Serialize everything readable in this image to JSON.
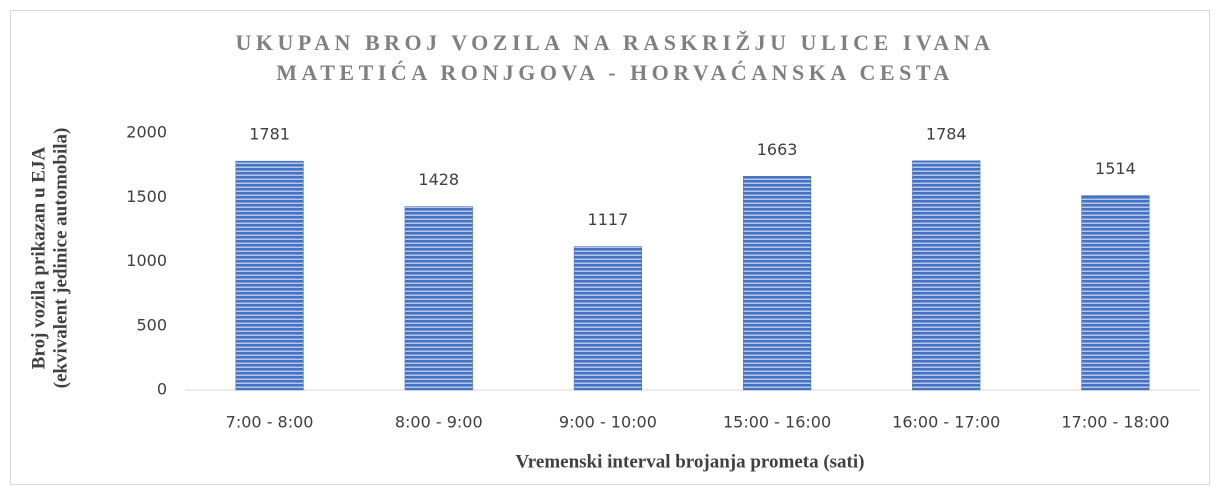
{
  "chart_data": {
    "type": "bar",
    "title": [
      "UKUPAN BROJ VOZILA NA RASKRIŽJU ULICE IVANA",
      "MATETIĆA RONJGOVA - HORVAĆANSKA CESTA"
    ],
    "xlabel": "Vremenski interval brojanja prometa (sati)",
    "ylabel": [
      "Broj vozila prikazan u EJA",
      "(ekvivalent jedinice automobila)"
    ],
    "categories": [
      "7:00 - 8:00",
      "8:00 - 9:00",
      "9:00 - 10:00",
      "15:00 - 16:00",
      "16:00 - 17:00",
      "17:00 - 18:00"
    ],
    "values": [
      1781,
      1428,
      1117,
      1663,
      1784,
      1514
    ],
    "color": "#4472c4",
    "ylim": [
      0,
      2000
    ],
    "yticks": [
      0,
      500,
      1000,
      1500,
      2000
    ],
    "grid": false
  }
}
